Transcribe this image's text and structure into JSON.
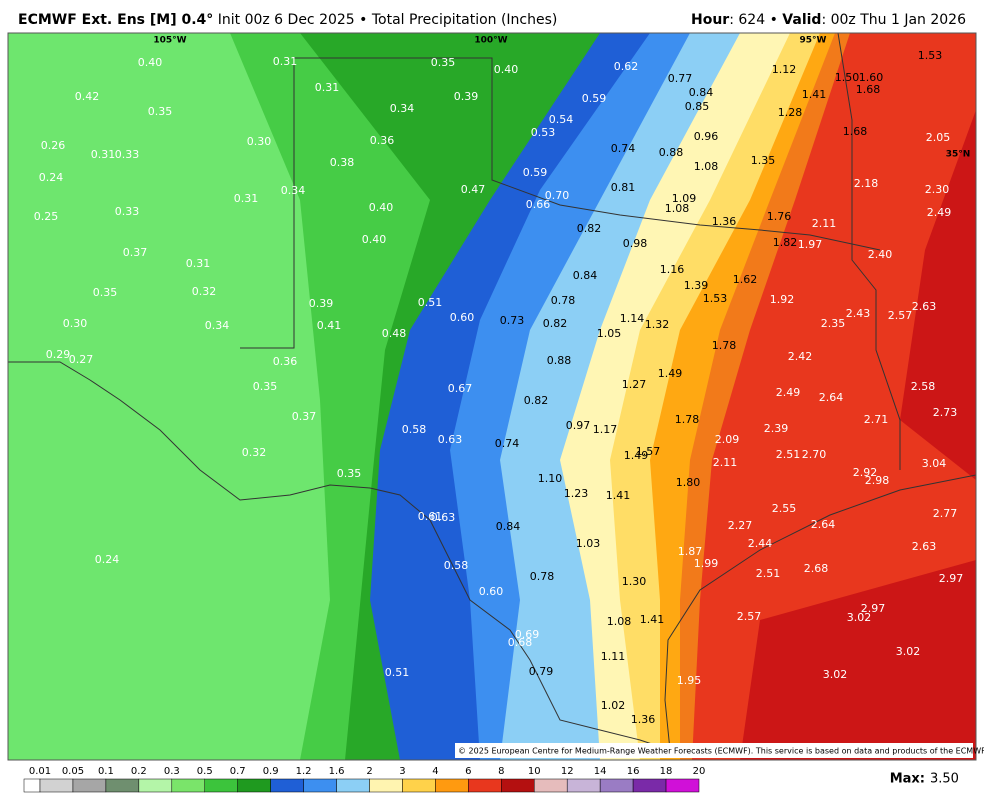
{
  "header": {
    "title_bold": "ECMWF Ext. Ens [M] 0.4°",
    "title_rest": "Init 00z 6 Dec 2025 • Total Precipitation (Inches)",
    "valid_hour_label": "Hour",
    "valid_hour": "624",
    "valid_label": "Valid",
    "valid_time": "00z Thu 1 Jan 2026"
  },
  "map": {
    "gridline_labels": [
      "105°W",
      "100°W",
      "95°W",
      "35°N"
    ],
    "labels": [
      "0.40",
      "0.42",
      "0.35",
      "0.26",
      "0.31",
      "0.33",
      "0.24",
      "0.25",
      "0.33",
      "0.37",
      "0.31",
      "0.35",
      "0.32",
      "0.30",
      "0.34",
      "0.29",
      "0.27",
      "0.31",
      "0.31",
      "0.35",
      "0.39",
      "0.40",
      "0.34",
      "0.36",
      "0.30",
      "0.38",
      "0.34",
      "0.31",
      "0.40",
      "0.40",
      "0.47",
      "0.39",
      "0.41",
      "0.51",
      "0.48",
      "0.60",
      "0.36",
      "0.35",
      "0.37",
      "0.32",
      "0.35",
      "0.24",
      "0.62",
      "0.77",
      "0.59",
      "0.54",
      "0.53",
      "0.84",
      "0.85",
      "0.74",
      "0.96",
      "0.88",
      "0.59",
      "0.70",
      "0.66",
      "0.81",
      "1.08",
      "1.09",
      "1.08",
      "1.36",
      "0.82",
      "0.98",
      "0.84",
      "0.78",
      "1.16",
      "1.39",
      "1.53",
      "0.73",
      "0.82",
      "1.14",
      "1.32",
      "1.05",
      "0.88",
      "1.78",
      "1.49",
      "0.67",
      "1.27",
      "0.82",
      "0.58",
      "0.63",
      "0.74",
      "0.97",
      "1.17",
      "1.78",
      "1.57",
      "1.49",
      "1.10",
      "1.23",
      "1.41",
      "1.80",
      "0.61",
      "0.63",
      "0.84",
      "1.03",
      "0.58",
      "0.78",
      "1.30",
      "0.60",
      "1.08",
      "1.41",
      "0.69",
      "0.68",
      "1.11",
      "0.51",
      "0.79",
      "1.02",
      "1.36",
      "1.95",
      "1.12",
      "1.50",
      "1.60",
      "1.68",
      "1.41",
      "1.28",
      "1.53",
      "1.68",
      "2.05",
      "1.35",
      "2.18",
      "2.30",
      "1.76",
      "2.11",
      "2.49",
      "1.82",
      "1.97",
      "2.40",
      "1.62",
      "1.92",
      "2.63",
      "2.43",
      "2.57",
      "2.35",
      "2.42",
      "2.58",
      "2.49",
      "2.64",
      "2.73",
      "2.71",
      "2.39",
      "2.09",
      "2.51",
      "2.70",
      "2.11",
      "3.04",
      "2.92",
      "2.98",
      "2.55",
      "2.77",
      "2.64",
      "2.27",
      "2.44",
      "2.63",
      "1.87",
      "1.99",
      "2.51",
      "2.68",
      "2.97",
      "2.97",
      "2.57",
      "3.02",
      "3.02",
      "3.02"
    ],
    "copyright": "© 2025 European Centre for Medium-Range Weather Forecasts (ECMWF). This service is based on data and products of the ECMWF."
  },
  "colorbar": {
    "labels": [
      "0.01",
      "0.05",
      "0.1",
      "0.2",
      "0.3",
      "0.5",
      "0.7",
      "0.9",
      "1.2",
      "1.6",
      "2",
      "3",
      "4",
      "6",
      "8",
      "10",
      "12",
      "14",
      "16",
      "18",
      "20"
    ],
    "colors": [
      "#ffffff",
      "#d2d2d2",
      "#a6a6a6",
      "#6f8f6f",
      "#b4f5a8",
      "#7ae46a",
      "#3cc43c",
      "#1f9a1f",
      "#1f5fd6",
      "#3d8ff0",
      "#8ccff5",
      "#fff4b0",
      "#ffd24a",
      "#ff9a10",
      "#e8371e",
      "#b41010",
      "#e6bcbc",
      "#c8b4d8",
      "#9a7cc4",
      "#7a2aa8",
      "#d010d8"
    ]
  },
  "max": {
    "label": "Max:",
    "value": "3.50"
  }
}
